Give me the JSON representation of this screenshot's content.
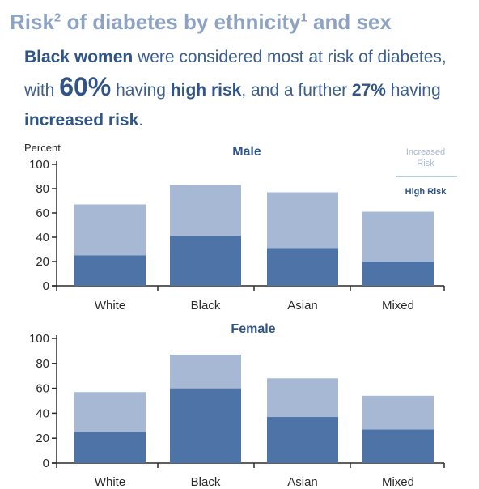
{
  "title": {
    "main": "Risk",
    "sup1": "2",
    "mid": " of diabetes by ethnicity",
    "sup2": "1",
    "end": " and sex"
  },
  "summary": {
    "p1": "Black women",
    "p2": " were considered most at risk of diabetes, with ",
    "p3": "60%",
    "p4": " having ",
    "p5": "high risk",
    "p6": ", and a further ",
    "p7": "27%",
    "p8": " having ",
    "p9": "increased risk",
    "p10": "."
  },
  "colors": {
    "high_risk": "#4e73a6",
    "increased_risk": "#a6b8d4",
    "title": "#8ea3c4",
    "text_dark_blue": "#2f5488"
  },
  "chart_data": [
    {
      "type": "bar",
      "stacked": true,
      "title": "Male",
      "ylabel": "Percent",
      "ylim": [
        0,
        100
      ],
      "yticks": [
        0,
        20,
        40,
        60,
        80,
        100
      ],
      "categories": [
        "White",
        "Black",
        "Asian",
        "Mixed"
      ],
      "series": [
        {
          "name": "High Risk",
          "values": [
            25,
            41,
            31,
            20
          ]
        },
        {
          "name": "Increased Risk",
          "values": [
            42,
            42,
            46,
            41
          ]
        }
      ],
      "legend": "top-right",
      "grid": false
    },
    {
      "type": "bar",
      "stacked": true,
      "title": "Female",
      "ylim": [
        0,
        100
      ],
      "yticks": [
        0,
        20,
        40,
        60,
        80,
        100
      ],
      "categories": [
        "White",
        "Black",
        "Asian",
        "Mixed"
      ],
      "series": [
        {
          "name": "High Risk",
          "values": [
            25,
            60,
            37,
            27
          ]
        },
        {
          "name": "Increased Risk",
          "values": [
            32,
            27,
            31,
            27
          ]
        }
      ],
      "grid": false
    }
  ]
}
